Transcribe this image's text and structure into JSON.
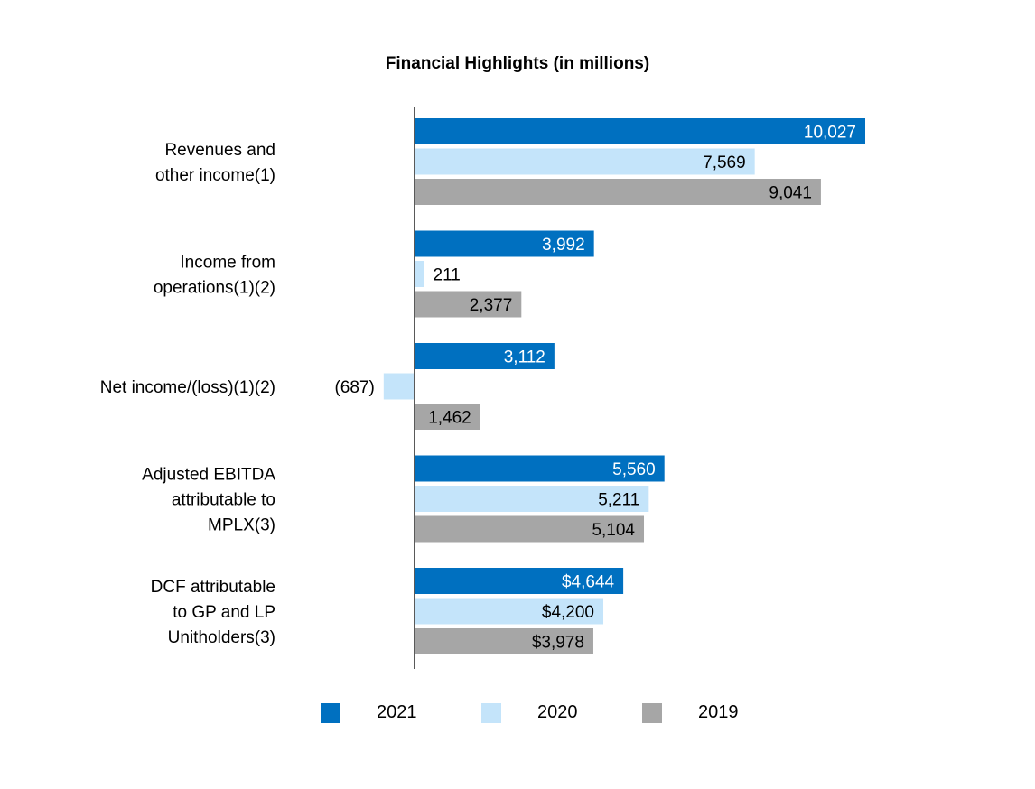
{
  "chart_data": {
    "type": "bar",
    "orientation": "horizontal",
    "title": "Financial Highlights (in millions)",
    "categories": [
      [
        "Revenues and",
        "other income(1)"
      ],
      [
        "Income from",
        "operations(1)(2)"
      ],
      [
        "Net income/(loss)(1)(2)"
      ],
      [
        "Adjusted EBITDA",
        "attributable to",
        "MPLX(3)"
      ],
      [
        "DCF attributable",
        "to GP and LP",
        "Unitholders(3)"
      ]
    ],
    "series": [
      {
        "name": "2021",
        "color": "#0070c0",
        "values": [
          10027,
          3992,
          3112,
          5560,
          4644
        ],
        "labels": [
          "10,027",
          "3,992",
          "3,112",
          "5,560",
          "$4,644"
        ]
      },
      {
        "name": "2020",
        "color": "#c4e4fa",
        "values": [
          7569,
          211,
          -687,
          5211,
          4200
        ],
        "labels": [
          "7,569",
          "211",
          "(687)",
          "5,211",
          "$4,200"
        ]
      },
      {
        "name": "2019",
        "color": "#a6a6a6",
        "values": [
          9041,
          2377,
          1462,
          5104,
          3978
        ],
        "labels": [
          "9,041",
          "2,377",
          "1,462",
          "5,104",
          "$3,978"
        ]
      }
    ],
    "xlim": [
      -700,
      10027
    ],
    "grid": false,
    "legend_position": "bottom"
  }
}
